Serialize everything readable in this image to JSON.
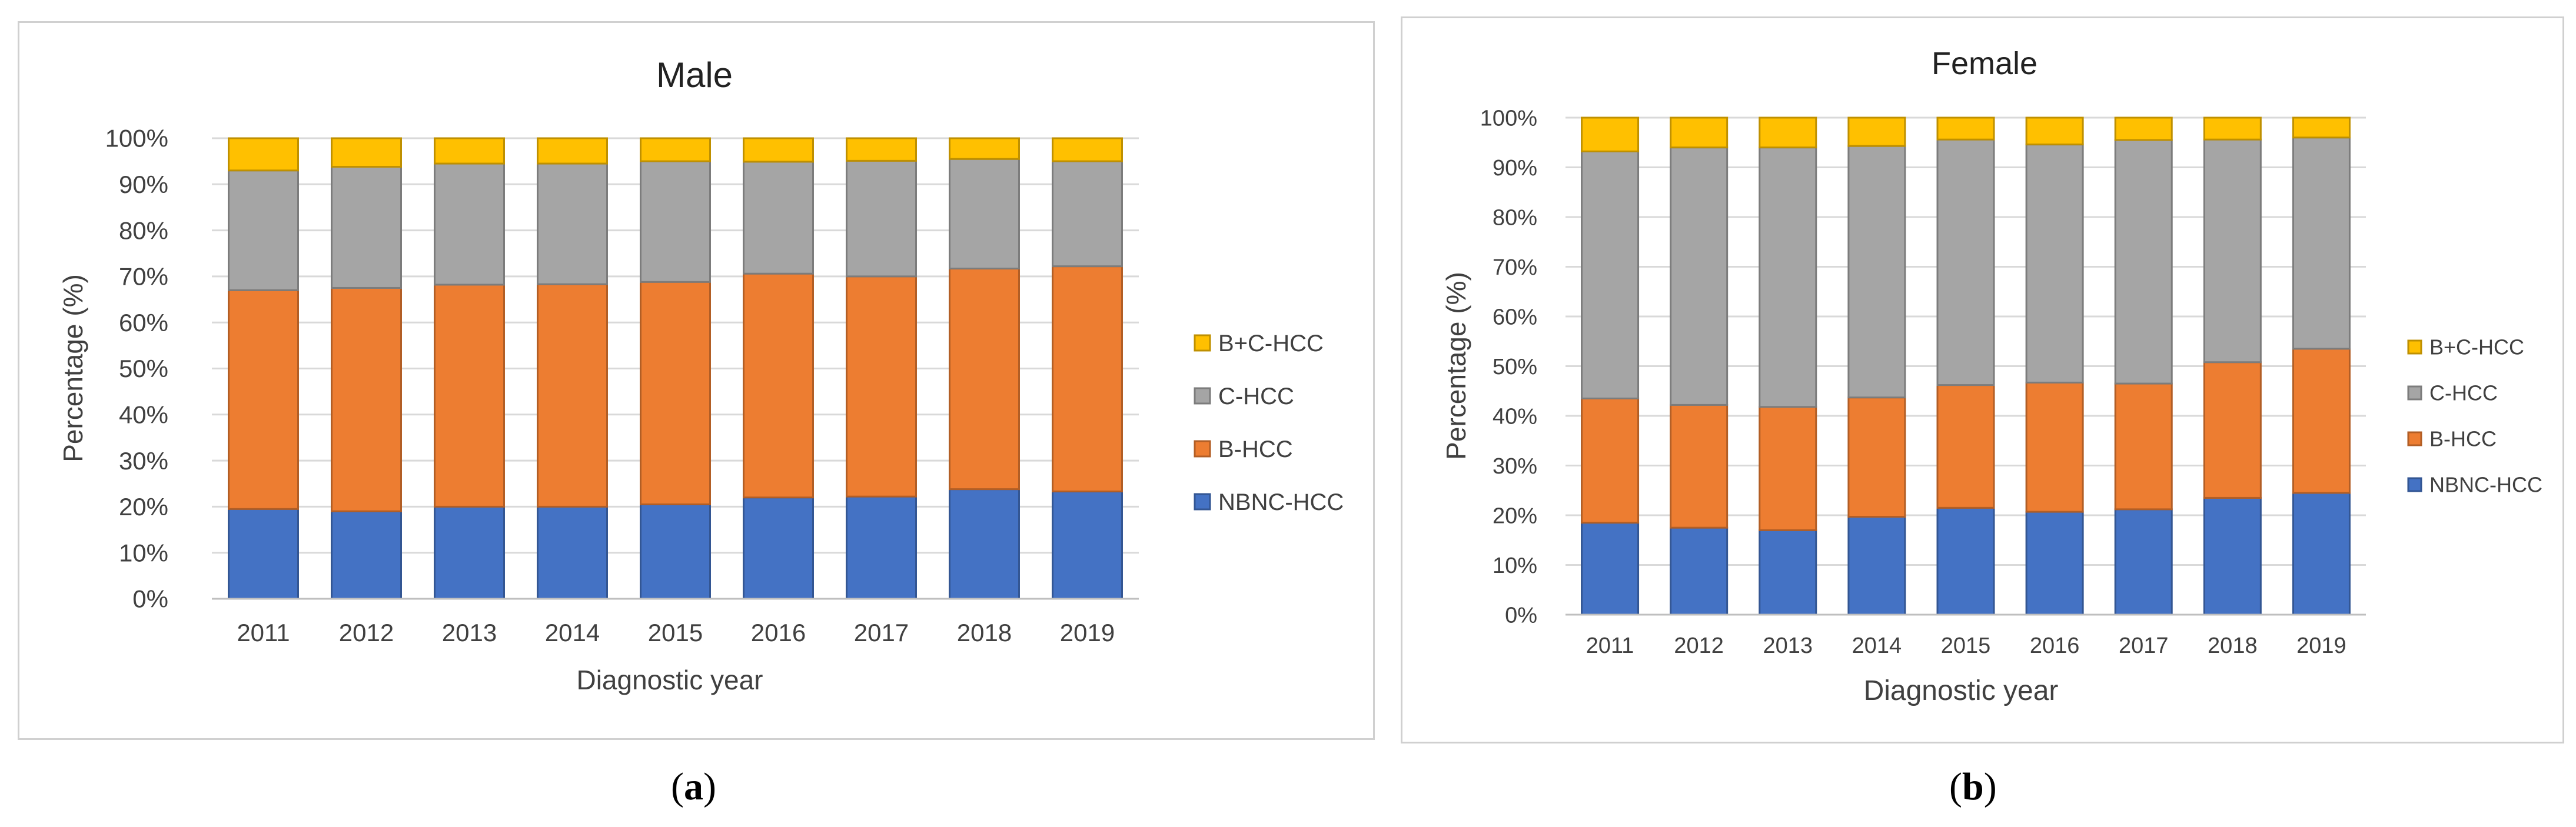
{
  "chart_data": [
    {
      "type": "bar",
      "stacked": true,
      "title": "Male",
      "xlabel": "Diagnostic year",
      "ylabel": "Percentage (%)",
      "ylim": [
        0,
        100
      ],
      "yticks": [
        "0%",
        "10%",
        "20%",
        "30%",
        "40%",
        "50%",
        "60%",
        "70%",
        "80%",
        "90%",
        "100%"
      ],
      "categories": [
        "2011",
        "2012",
        "2013",
        "2014",
        "2015",
        "2016",
        "2017",
        "2018",
        "2019"
      ],
      "grid": true,
      "legend_position": "right",
      "legend": [
        "B+C-HCC",
        "C-HCC",
        "B-HCC",
        "NBNC-HCC"
      ],
      "series": [
        {
          "name": "NBNC-HCC",
          "color": "#4472C4",
          "values": [
            19.5,
            19,
            20,
            20,
            20.5,
            22,
            22.2,
            23.8,
            23.3
          ]
        },
        {
          "name": "B-HCC",
          "color": "#ED7D31",
          "values": [
            47.5,
            48.5,
            48.2,
            48.3,
            48.3,
            48.6,
            47.8,
            47.9,
            48.9
          ]
        },
        {
          "name": "C-HCC",
          "color": "#A5A5A5",
          "values": [
            26,
            26.3,
            26.3,
            26.2,
            26.2,
            24.3,
            25.1,
            23.8,
            22.8
          ]
        },
        {
          "name": "B+C-HCC",
          "color": "#FFC000",
          "values": [
            7,
            6.2,
            5.5,
            5.5,
            5,
            5.1,
            4.9,
            4.5,
            5
          ]
        }
      ]
    },
    {
      "type": "bar",
      "stacked": true,
      "title": "Female",
      "xlabel": "Diagnostic year",
      "ylabel": "Percentage (%)",
      "ylim": [
        0,
        100
      ],
      "yticks": [
        "0%",
        "10%",
        "20%",
        "30%",
        "40%",
        "50%",
        "60%",
        "70%",
        "80%",
        "90%",
        "100%"
      ],
      "categories": [
        "2011",
        "2012",
        "2013",
        "2014",
        "2015",
        "2016",
        "2017",
        "2018",
        "2019"
      ],
      "grid": true,
      "legend_position": "right",
      "legend": [
        "B+C-HCC",
        "C-HCC",
        "B-HCC",
        "NBNC-HCC"
      ],
      "series": [
        {
          "name": "NBNC-HCC",
          "color": "#4472C4",
          "values": [
            18.5,
            17.5,
            17,
            19.7,
            21.5,
            20.7,
            21.2,
            23.5,
            24.5
          ]
        },
        {
          "name": "B-HCC",
          "color": "#ED7D31",
          "values": [
            25,
            24.7,
            24.8,
            24,
            24.7,
            26,
            25.3,
            27.3,
            29
          ]
        },
        {
          "name": "C-HCC",
          "color": "#A5A5A5",
          "values": [
            49.7,
            51.8,
            52.2,
            50.6,
            49.4,
            47.9,
            49,
            44.8,
            42.5
          ]
        },
        {
          "name": "B+C-HCC",
          "color": "#FFC000",
          "values": [
            6.8,
            6,
            6,
            5.7,
            4.4,
            5.4,
            4.5,
            4.4,
            4
          ]
        }
      ]
    }
  ],
  "captions": {
    "a": "a",
    "b": "b"
  }
}
